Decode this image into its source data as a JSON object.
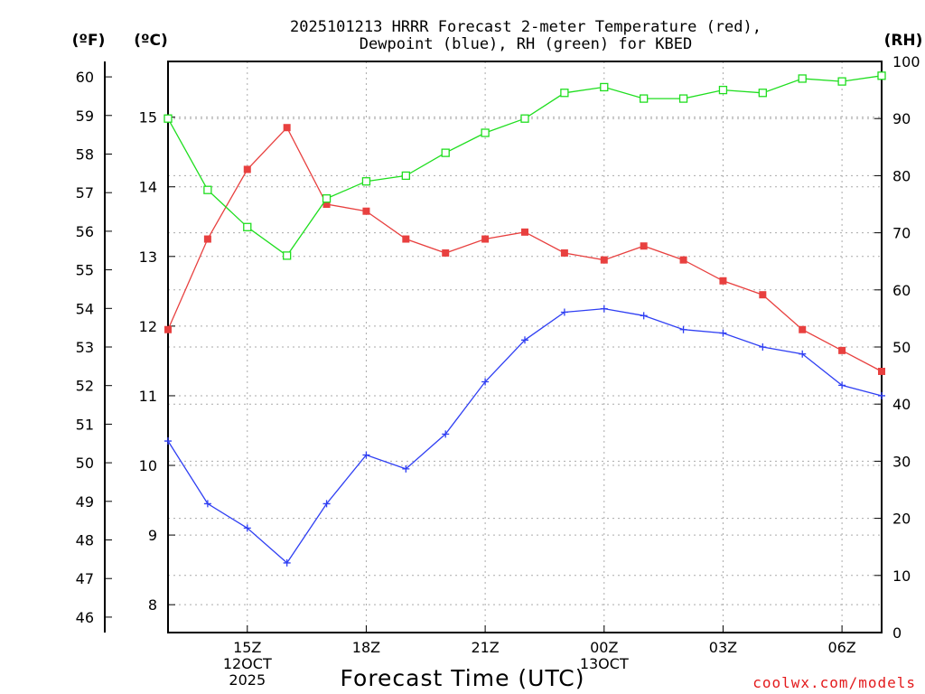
{
  "chart_data": {
    "type": "line",
    "title_line1": "2025101213 HRRR Forecast 2-meter Temperature (red),",
    "title_line2": "Dewpoint (blue), RH (green) for KBED",
    "xlabel": "Forecast Time (UTC)",
    "credit": "coolwx.com/models",
    "left_outer_axis": {
      "unit": "(ºF)",
      "ticks": [
        "46",
        "47",
        "48",
        "49",
        "50",
        "51",
        "52",
        "53",
        "54",
        "55",
        "56",
        "57",
        "58",
        "59",
        "60"
      ],
      "range": [
        45.6,
        60.4
      ]
    },
    "left_inner_axis": {
      "unit": "(ºC)",
      "ticks": [
        "8",
        "9",
        "10",
        "11",
        "12",
        "13",
        "14",
        "15"
      ],
      "range": [
        7.6,
        15.8
      ]
    },
    "right_axis": {
      "unit": "(RH)",
      "ticks": [
        "0",
        "10",
        "20",
        "30",
        "40",
        "50",
        "60",
        "70",
        "80",
        "90",
        "100"
      ],
      "range": [
        0,
        100
      ]
    },
    "x_range": [
      13,
      31
    ],
    "x_ticks": [
      {
        "x": 15,
        "lines": [
          "15Z",
          "12OCT",
          "2025"
        ]
      },
      {
        "x": 18,
        "lines": [
          "18Z"
        ]
      },
      {
        "x": 21,
        "lines": [
          "21Z"
        ]
      },
      {
        "x": 24,
        "lines": [
          "00Z",
          "13OCT"
        ]
      },
      {
        "x": 27,
        "lines": [
          "03Z"
        ]
      },
      {
        "x": 30,
        "lines": [
          "06Z"
        ]
      }
    ],
    "series": [
      {
        "name": "Temperature",
        "color": "#e8403f",
        "marker": "filled-square",
        "axis": "celsius",
        "x": [
          13,
          14,
          15,
          16,
          17,
          18,
          19,
          20,
          21,
          22,
          23,
          24,
          25,
          26,
          27,
          28,
          29,
          30,
          31
        ],
        "values": [
          11.95,
          13.25,
          14.25,
          14.85,
          13.75,
          13.65,
          13.25,
          13.05,
          13.25,
          13.35,
          13.05,
          12.95,
          13.15,
          12.95,
          12.65,
          12.45,
          11.95,
          11.65,
          11.35
        ]
      },
      {
        "name": "Dewpoint",
        "color": "#2f3ff3",
        "marker": "plus",
        "axis": "celsius",
        "x": [
          13,
          14,
          15,
          16,
          17,
          18,
          19,
          20,
          21,
          22,
          23,
          24,
          25,
          26,
          27,
          28,
          29,
          30,
          31
        ],
        "values": [
          10.35,
          9.45,
          9.1,
          8.6,
          9.45,
          10.15,
          9.95,
          10.45,
          11.2,
          11.8,
          12.2,
          12.25,
          12.15,
          11.95,
          11.9,
          11.7,
          11.6,
          11.15,
          11.0
        ]
      },
      {
        "name": "RH",
        "color": "#1fde1f",
        "marker": "open-square",
        "axis": "rh",
        "x": [
          13,
          14,
          15,
          16,
          17,
          18,
          19,
          20,
          21,
          22,
          23,
          24,
          25,
          26,
          27,
          28,
          29,
          30,
          31
        ],
        "values": [
          90.0,
          77.5,
          71.0,
          66.0,
          76.0,
          79.0,
          80.0,
          84.0,
          87.5,
          90.0,
          94.5,
          95.5,
          93.5,
          93.5,
          95.0,
          94.5,
          97.0,
          96.5,
          97.5
        ]
      }
    ]
  }
}
